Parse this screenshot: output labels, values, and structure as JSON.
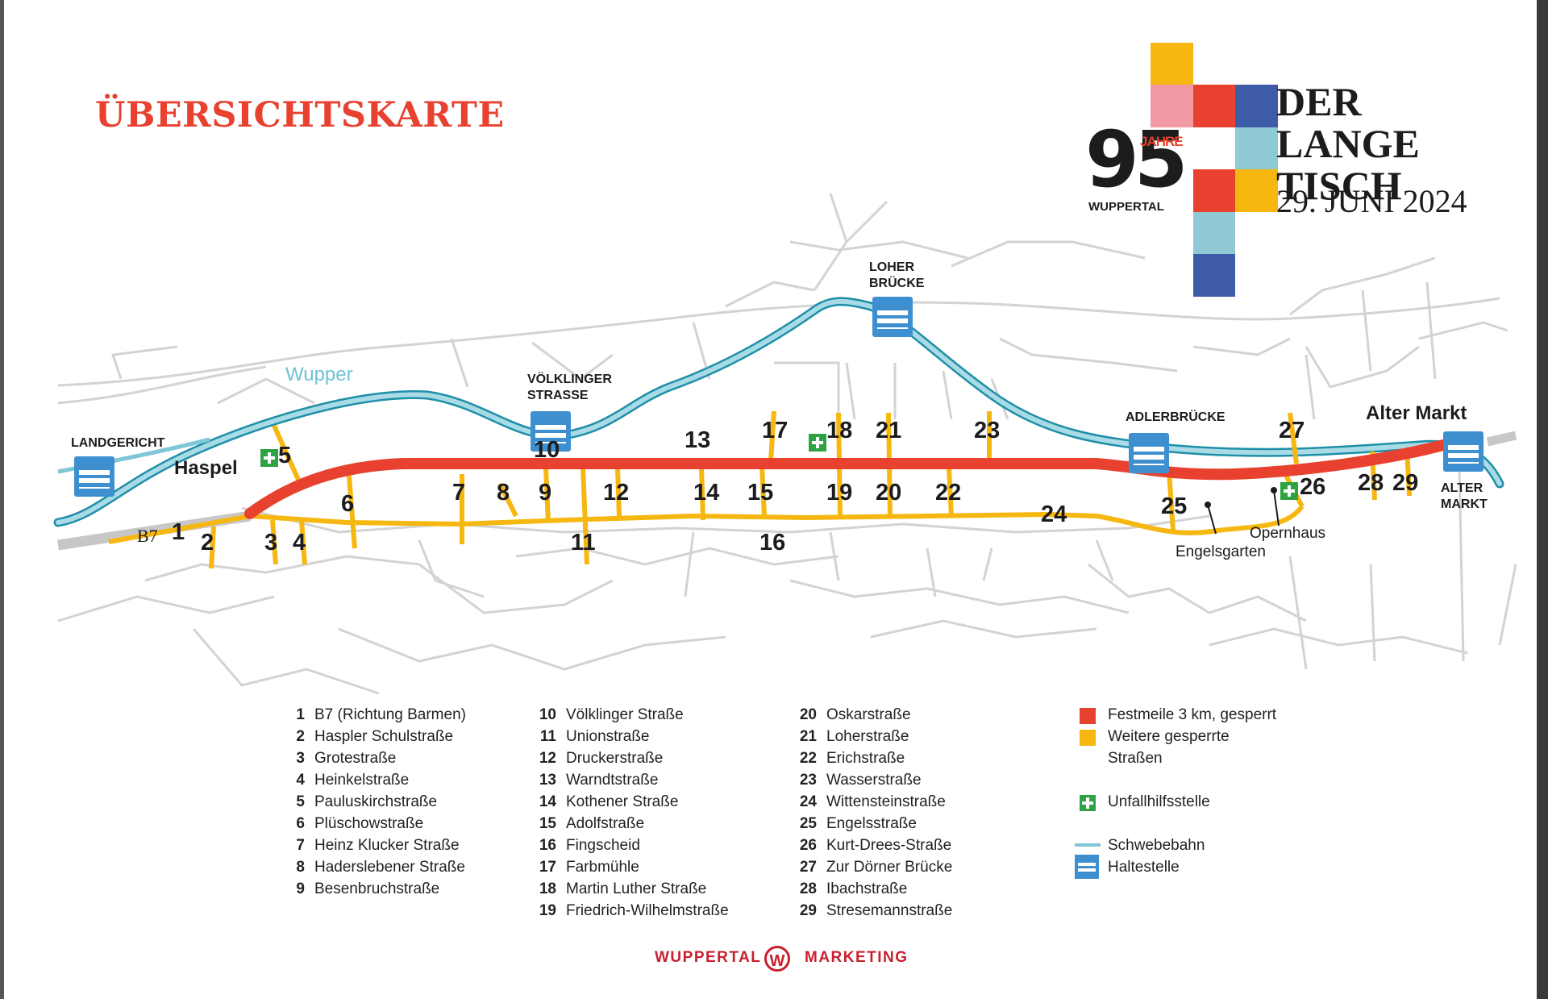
{
  "title": "ÜBERSICHTSKARTE",
  "logo": {
    "number": "95",
    "jahre": "JAHRE",
    "city": "WUPPERTAL",
    "line1": "DER",
    "line2": "LANGE",
    "line3": "TISCH",
    "date": "29. JUNI 2024"
  },
  "map_labels": {
    "wupper": "Wupper",
    "haspel": "Haspel",
    "b7": "B7",
    "alter_markt_top": "Alter Markt",
    "engelsgarten": "Engelsgarten",
    "opernhaus": "Opernhaus"
  },
  "stations": [
    {
      "name": "LANDGERICHT"
    },
    {
      "name": "VÖLKLINGER\nSTRASSE"
    },
    {
      "name": "LOHER\nBRÜCKE"
    },
    {
      "name": "ADLERBRÜCKE"
    },
    {
      "name": "ALTER\nMARKT"
    }
  ],
  "streets_col1": [
    {
      "num": "1",
      "name": "B7 (Richtung Barmen)"
    },
    {
      "num": "2",
      "name": "Haspler Schulstraße"
    },
    {
      "num": "3",
      "name": "Grotestraße"
    },
    {
      "num": "4",
      "name": "Heinkelstraße"
    },
    {
      "num": "5",
      "name": "Pauluskirchstraße"
    },
    {
      "num": "6",
      "name": "Plüschowstraße"
    },
    {
      "num": "7",
      "name": "Heinz Klucker Straße"
    },
    {
      "num": "8",
      "name": "Haderslebener Straße"
    },
    {
      "num": "9",
      "name": "Besenbruchstraße"
    }
  ],
  "streets_col2": [
    {
      "num": "10",
      "name": "Völklinger Straße"
    },
    {
      "num": "11",
      "name": "Unionstraße"
    },
    {
      "num": "12",
      "name": "Druckerstraße"
    },
    {
      "num": "13",
      "name": "Warndtstraße"
    },
    {
      "num": "14",
      "name": "Kothener Straße"
    },
    {
      "num": "15",
      "name": "Adolfstraße"
    },
    {
      "num": "16",
      "name": "Fingscheid"
    },
    {
      "num": "17",
      "name": "Farbmühle"
    },
    {
      "num": "18",
      "name": "Martin Luther Straße"
    },
    {
      "num": "19",
      "name": "Friedrich-Wilhelmstraße"
    }
  ],
  "streets_col3": [
    {
      "num": "20",
      "name": "Oskarstraße"
    },
    {
      "num": "21",
      "name": "Loherstraße"
    },
    {
      "num": "22",
      "name": "Erichstraße"
    },
    {
      "num": "23",
      "name": "Wasserstraße"
    },
    {
      "num": "24",
      "name": "Wittensteinstraße"
    },
    {
      "num": "25",
      "name": "Engelsstraße"
    },
    {
      "num": "26",
      "name": "Kurt-Drees-Straße"
    },
    {
      "num": "27",
      "name": "Zur Dörner Brücke"
    },
    {
      "num": "28",
      "name": "Ibachstraße"
    },
    {
      "num": "29",
      "name": "Stresemannstraße"
    }
  ],
  "key": {
    "festmeile": "Festmeile 3 km, gesperrt",
    "weitere1": "Weitere gesperrte",
    "weitere2": "Straßen",
    "unfall": "Unfallhilfsstelle",
    "schwebebahn": "Schwebebahn",
    "haltestelle": "Haltestelle"
  },
  "colors": {
    "festmeile": "#e8412f",
    "closed": "#f7b711",
    "river": "#7fc6d6",
    "road": "#d3d3d3",
    "aid": "#2ea343",
    "station": "#3e8fd0"
  },
  "footer": {
    "left": "WUPPERTAL",
    "badge": "W",
    "right": "MARKETING"
  }
}
